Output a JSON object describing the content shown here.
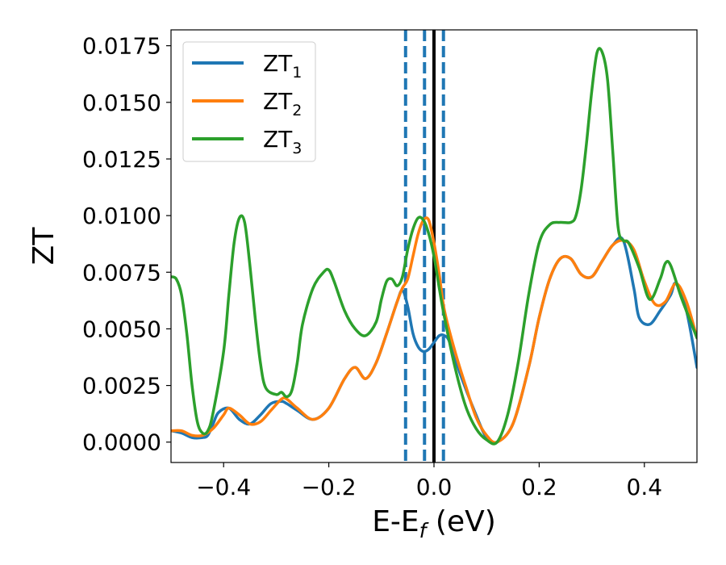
{
  "chart_data": {
    "type": "line",
    "xlabel": "E-E",
    "xlabel_sub": "f",
    "xlabel_unit": " (eV)",
    "ylabel": "ZT",
    "xlim": [
      -0.5,
      0.5
    ],
    "ylim": [
      -0.0009,
      0.0182
    ],
    "xticks": [
      -0.4,
      -0.2,
      0.0,
      0.2,
      0.4
    ],
    "xtick_labels": [
      "−0.4",
      "−0.2",
      "0.0",
      "0.2",
      "0.4"
    ],
    "yticks": [
      0.0,
      0.0025,
      0.005,
      0.0075,
      0.01,
      0.0125,
      0.015,
      0.0175
    ],
    "ytick_labels": [
      "0.0000",
      "0.0025",
      "0.0050",
      "0.0075",
      "0.0100",
      "0.0125",
      "0.0150",
      "0.0175"
    ],
    "grid": false,
    "legend_position": "top-left",
    "vlines": [
      {
        "x": -0.054,
        "style": "dashed",
        "color": "#1f77b4"
      },
      {
        "x": -0.018,
        "style": "dashed",
        "color": "#1f77b4"
      },
      {
        "x": 0.0,
        "style": "solid",
        "color": "#000000"
      },
      {
        "x": 0.018,
        "style": "dashed",
        "color": "#1f77b4"
      }
    ],
    "series": [
      {
        "name": "ZT",
        "sub": "1",
        "color": "#1f77b4",
        "x": [
          -0.5,
          -0.48,
          -0.46,
          -0.44,
          -0.43,
          -0.42,
          -0.41,
          -0.39,
          -0.37,
          -0.35,
          -0.33,
          -0.31,
          -0.29,
          -0.28,
          -0.26,
          -0.23,
          -0.2,
          -0.17,
          -0.15,
          -0.13,
          -0.11,
          -0.09,
          -0.07,
          -0.06,
          -0.05,
          -0.04,
          -0.03,
          -0.02,
          -0.01,
          0.0,
          0.01,
          0.02,
          0.03,
          0.05,
          0.08,
          0.1,
          0.12,
          0.15,
          0.18,
          0.2,
          0.22,
          0.24,
          0.26,
          0.28,
          0.3,
          0.32,
          0.34,
          0.36,
          0.38,
          0.39,
          0.41,
          0.43,
          0.45,
          0.46,
          0.48,
          0.5
        ],
        "y": [
          0.0005,
          0.0004,
          0.0002,
          0.0002,
          0.0003,
          0.0008,
          0.0013,
          0.0015,
          0.001,
          0.0008,
          0.0012,
          0.0017,
          0.0018,
          0.0017,
          0.0014,
          0.001,
          0.0015,
          0.0028,
          0.0033,
          0.0028,
          0.0035,
          0.0048,
          0.0062,
          0.0067,
          0.006,
          0.0048,
          0.0042,
          0.004,
          0.0041,
          0.0044,
          0.0047,
          0.0047,
          0.0044,
          0.003,
          0.0012,
          0.0002,
          0.0,
          0.0008,
          0.0033,
          0.0055,
          0.0072,
          0.0081,
          0.0081,
          0.0074,
          0.0073,
          0.008,
          0.0087,
          0.0089,
          0.0068,
          0.0055,
          0.0052,
          0.0058,
          0.0065,
          0.007,
          0.0058,
          0.0033
        ]
      },
      {
        "name": "ZT",
        "sub": "2",
        "color": "#ff7f0e",
        "x": [
          -0.5,
          -0.48,
          -0.46,
          -0.44,
          -0.42,
          -0.4,
          -0.39,
          -0.37,
          -0.35,
          -0.33,
          -0.31,
          -0.29,
          -0.28,
          -0.26,
          -0.23,
          -0.2,
          -0.17,
          -0.15,
          -0.13,
          -0.11,
          -0.09,
          -0.07,
          -0.06,
          -0.05,
          -0.04,
          -0.03,
          -0.02,
          -0.01,
          0.0,
          0.01,
          0.02,
          0.04,
          0.06,
          0.08,
          0.1,
          0.12,
          0.15,
          0.18,
          0.2,
          0.22,
          0.24,
          0.26,
          0.28,
          0.3,
          0.32,
          0.34,
          0.36,
          0.38,
          0.4,
          0.42,
          0.44,
          0.46,
          0.48,
          0.5
        ],
        "y": [
          0.0005,
          0.0005,
          0.0003,
          0.0003,
          0.0006,
          0.0012,
          0.0015,
          0.0012,
          0.0008,
          0.0009,
          0.0014,
          0.0019,
          0.0019,
          0.0015,
          0.001,
          0.0015,
          0.0028,
          0.0033,
          0.0028,
          0.0035,
          0.0048,
          0.0062,
          0.0068,
          0.0072,
          0.0082,
          0.0092,
          0.0098,
          0.0098,
          0.0088,
          0.0074,
          0.0058,
          0.004,
          0.0025,
          0.0011,
          0.0003,
          0.0,
          0.0008,
          0.0033,
          0.0055,
          0.0072,
          0.0081,
          0.0081,
          0.0074,
          0.0073,
          0.008,
          0.0087,
          0.0089,
          0.0085,
          0.0071,
          0.0061,
          0.0062,
          0.007,
          0.0062,
          0.0046
        ]
      },
      {
        "name": "ZT",
        "sub": "3",
        "color": "#2ca02c",
        "x": [
          -0.5,
          -0.49,
          -0.48,
          -0.47,
          -0.46,
          -0.45,
          -0.44,
          -0.43,
          -0.42,
          -0.4,
          -0.39,
          -0.38,
          -0.37,
          -0.36,
          -0.35,
          -0.34,
          -0.33,
          -0.32,
          -0.3,
          -0.29,
          -0.28,
          -0.27,
          -0.26,
          -0.25,
          -0.23,
          -0.21,
          -0.2,
          -0.19,
          -0.17,
          -0.15,
          -0.13,
          -0.11,
          -0.1,
          -0.09,
          -0.08,
          -0.07,
          -0.06,
          -0.05,
          -0.04,
          -0.03,
          -0.02,
          -0.01,
          0.0,
          0.01,
          0.02,
          0.04,
          0.06,
          0.08,
          0.1,
          0.12,
          0.14,
          0.16,
          0.18,
          0.2,
          0.22,
          0.24,
          0.26,
          0.27,
          0.28,
          0.29,
          0.3,
          0.31,
          0.32,
          0.33,
          0.34,
          0.35,
          0.36,
          0.37,
          0.39,
          0.41,
          0.43,
          0.44,
          0.45,
          0.47,
          0.49,
          0.5
        ],
        "y": [
          0.0073,
          0.0072,
          0.0065,
          0.0048,
          0.0025,
          0.0009,
          0.0004,
          0.0005,
          0.0013,
          0.004,
          0.0065,
          0.0088,
          0.0099,
          0.0097,
          0.0078,
          0.0055,
          0.0035,
          0.0024,
          0.0021,
          0.0022,
          0.002,
          0.0023,
          0.0035,
          0.0052,
          0.0068,
          0.0075,
          0.0076,
          0.0071,
          0.0058,
          0.005,
          0.0047,
          0.0053,
          0.0063,
          0.0071,
          0.0072,
          0.0069,
          0.0073,
          0.0085,
          0.0094,
          0.0099,
          0.0098,
          0.0092,
          0.0082,
          0.0068,
          0.0055,
          0.0033,
          0.0016,
          0.0006,
          0.0001,
          0.0,
          0.0012,
          0.0035,
          0.0065,
          0.0088,
          0.0096,
          0.0097,
          0.0097,
          0.01,
          0.0112,
          0.0132,
          0.0155,
          0.0172,
          0.0172,
          0.016,
          0.0128,
          0.0095,
          0.0089,
          0.0088,
          0.0077,
          0.0063,
          0.0072,
          0.0079,
          0.0078,
          0.0064,
          0.0052,
          0.0046
        ]
      }
    ]
  }
}
